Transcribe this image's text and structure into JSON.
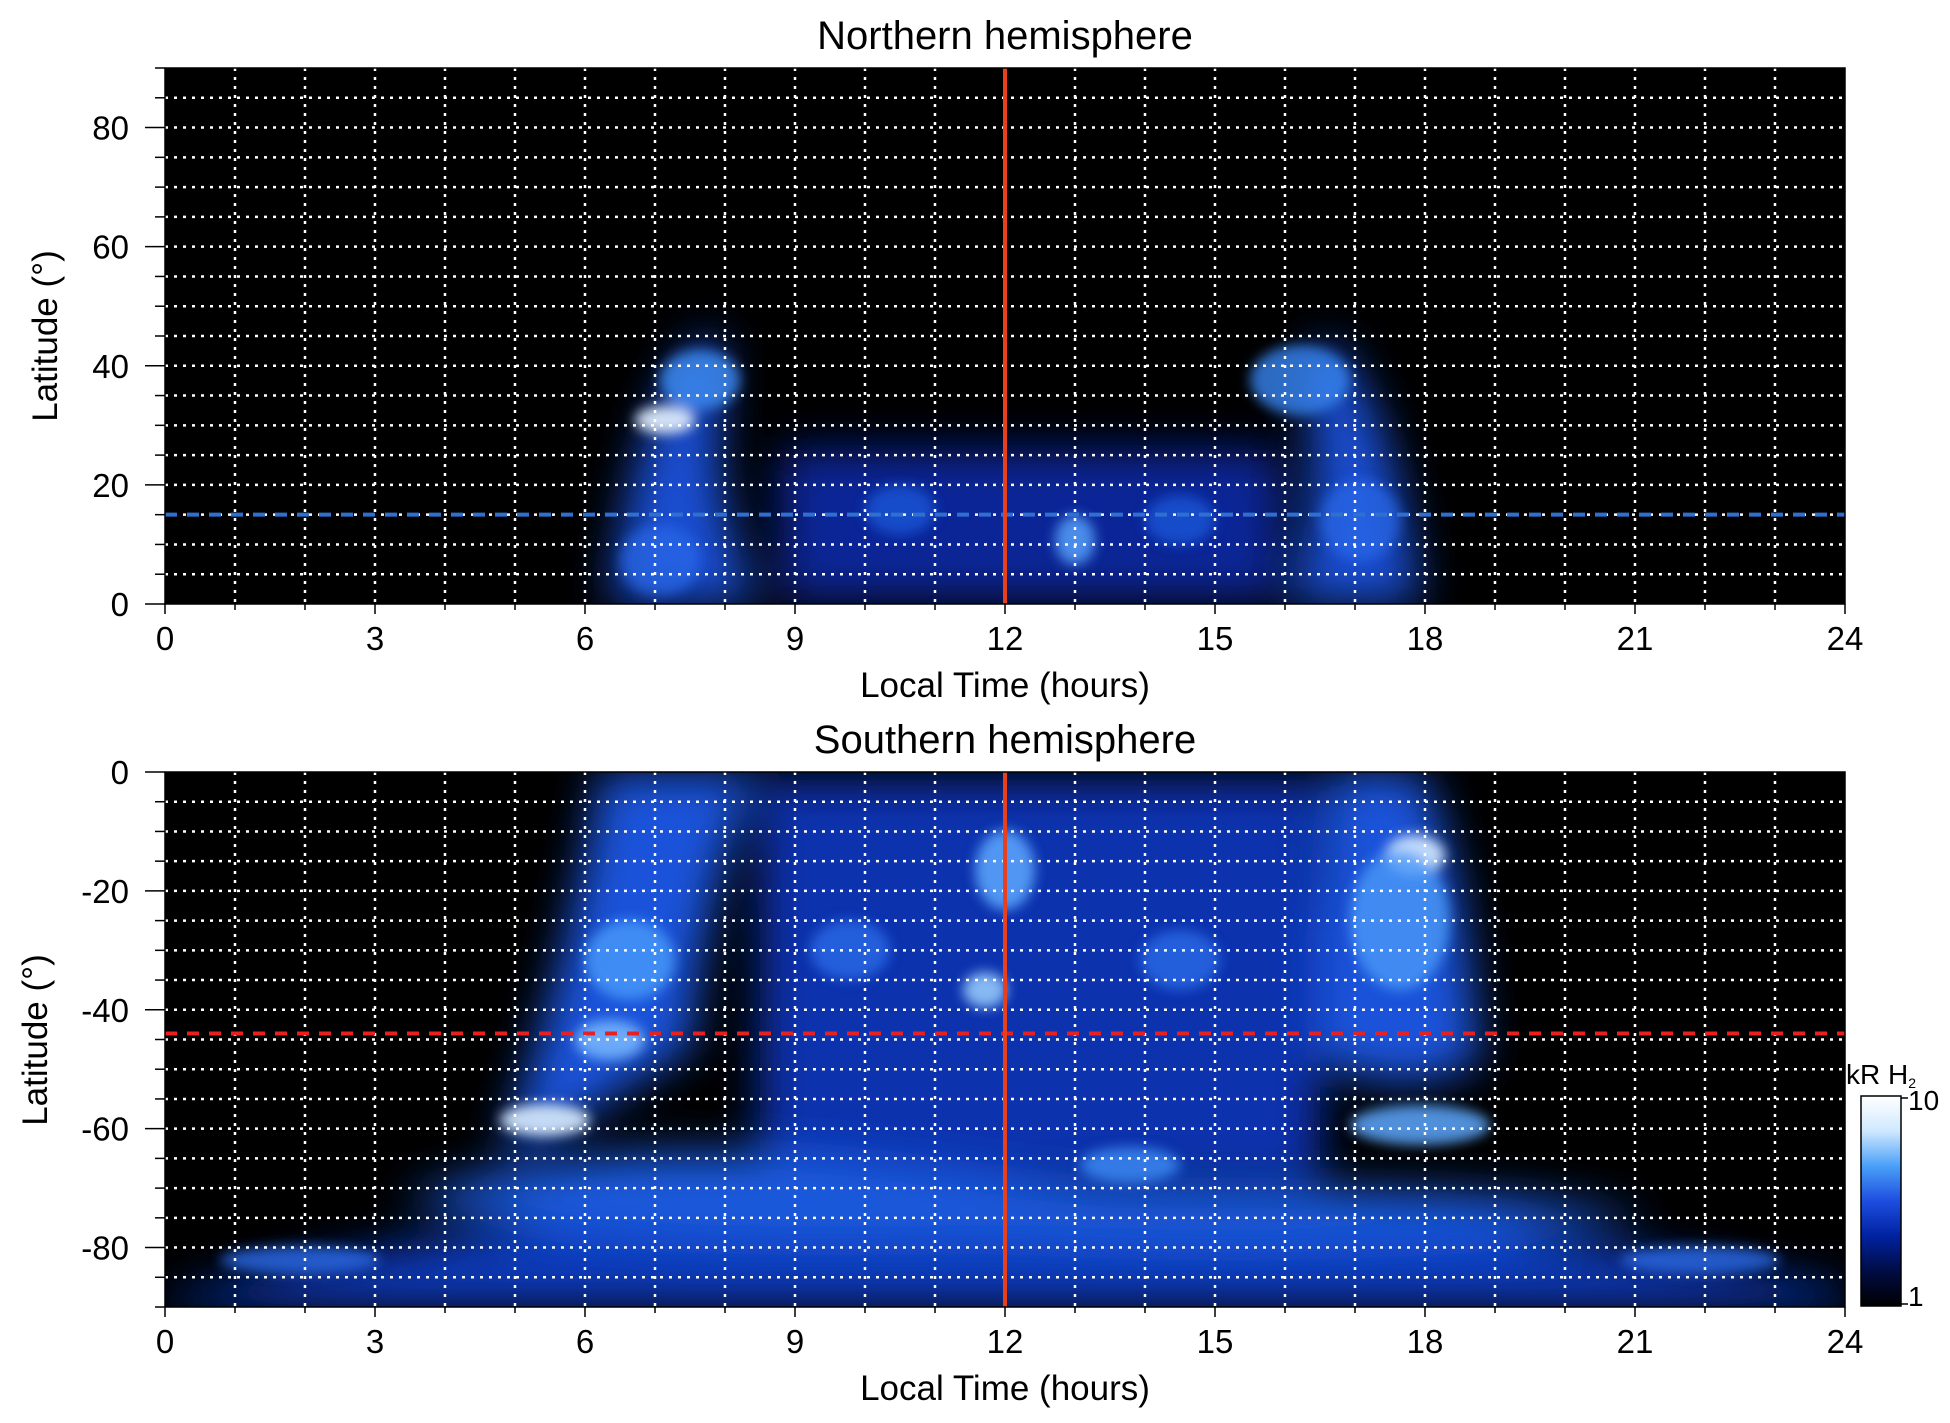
{
  "chart_data": [
    {
      "type": "heatmap",
      "title": "Northern hemisphere",
      "xlabel": "Local Time (hours)",
      "ylabel": "Latitude (°)",
      "xlim": [
        0,
        24
      ],
      "ylim": [
        0,
        90
      ],
      "xticks": [
        0,
        3,
        6,
        9,
        12,
        15,
        18,
        21,
        24
      ],
      "yticks": [
        0,
        20,
        40,
        60,
        80
      ],
      "grid": true,
      "vline": {
        "x": 12,
        "color": "#e8401c"
      },
      "hline": {
        "y": 15,
        "color": "#2f6fd0",
        "style": "dashed"
      },
      "emission_regions": [
        {
          "x": 7.5,
          "y": 30,
          "intensity": 10
        },
        {
          "x": 7.2,
          "y": 40,
          "intensity": 7
        },
        {
          "x": 8.5,
          "y": 15,
          "intensity": 5
        },
        {
          "x": 11,
          "y": 15,
          "intensity": 4
        },
        {
          "x": 13,
          "y": 10,
          "intensity": 6
        },
        {
          "x": 14.5,
          "y": 15,
          "intensity": 4
        },
        {
          "x": 16.5,
          "y": 35,
          "intensity": 7
        },
        {
          "x": 17,
          "y": 20,
          "intensity": 5
        }
      ]
    },
    {
      "type": "heatmap",
      "title": "Southern hemisphere",
      "xlabel": "Local Time (hours)",
      "ylabel": "Latitude (°)",
      "xlim": [
        0,
        24
      ],
      "ylim": [
        -90,
        0
      ],
      "xticks": [
        0,
        3,
        6,
        9,
        12,
        15,
        18,
        21,
        24
      ],
      "yticks": [
        0,
        -20,
        -40,
        -60,
        -80
      ],
      "grid": true,
      "vline": {
        "x": 12,
        "color": "#e8401c"
      },
      "hline": {
        "y": -44,
        "color": "#e82020",
        "style": "dashed"
      },
      "emission_regions": [
        {
          "x": 6.5,
          "y": -35,
          "intensity": 7
        },
        {
          "x": 5.5,
          "y": -58,
          "intensity": 9
        },
        {
          "x": 12,
          "y": -20,
          "intensity": 8
        },
        {
          "x": 11.5,
          "y": -38,
          "intensity": 8
        },
        {
          "x": 17.8,
          "y": -15,
          "intensity": 9
        },
        {
          "x": 17,
          "y": -40,
          "intensity": 5
        },
        {
          "x": 17.5,
          "y": -62,
          "intensity": 7
        },
        {
          "x": 14,
          "y": -68,
          "intensity": 6
        },
        {
          "x": 8,
          "y": -75,
          "intensity": 4
        },
        {
          "x": 3,
          "y": -84,
          "intensity": 5
        },
        {
          "x": 21,
          "y": -84,
          "intensity": 5
        }
      ]
    }
  ],
  "colorbar": {
    "unit_label": "kR H",
    "unit_subscript": "2",
    "max_label": "10",
    "min_label": "1",
    "colors": [
      "#000000",
      "#000c44",
      "#0022a0",
      "#1e4ee0",
      "#4aa0f8",
      "#cfe8ff",
      "#ffffff"
    ]
  }
}
